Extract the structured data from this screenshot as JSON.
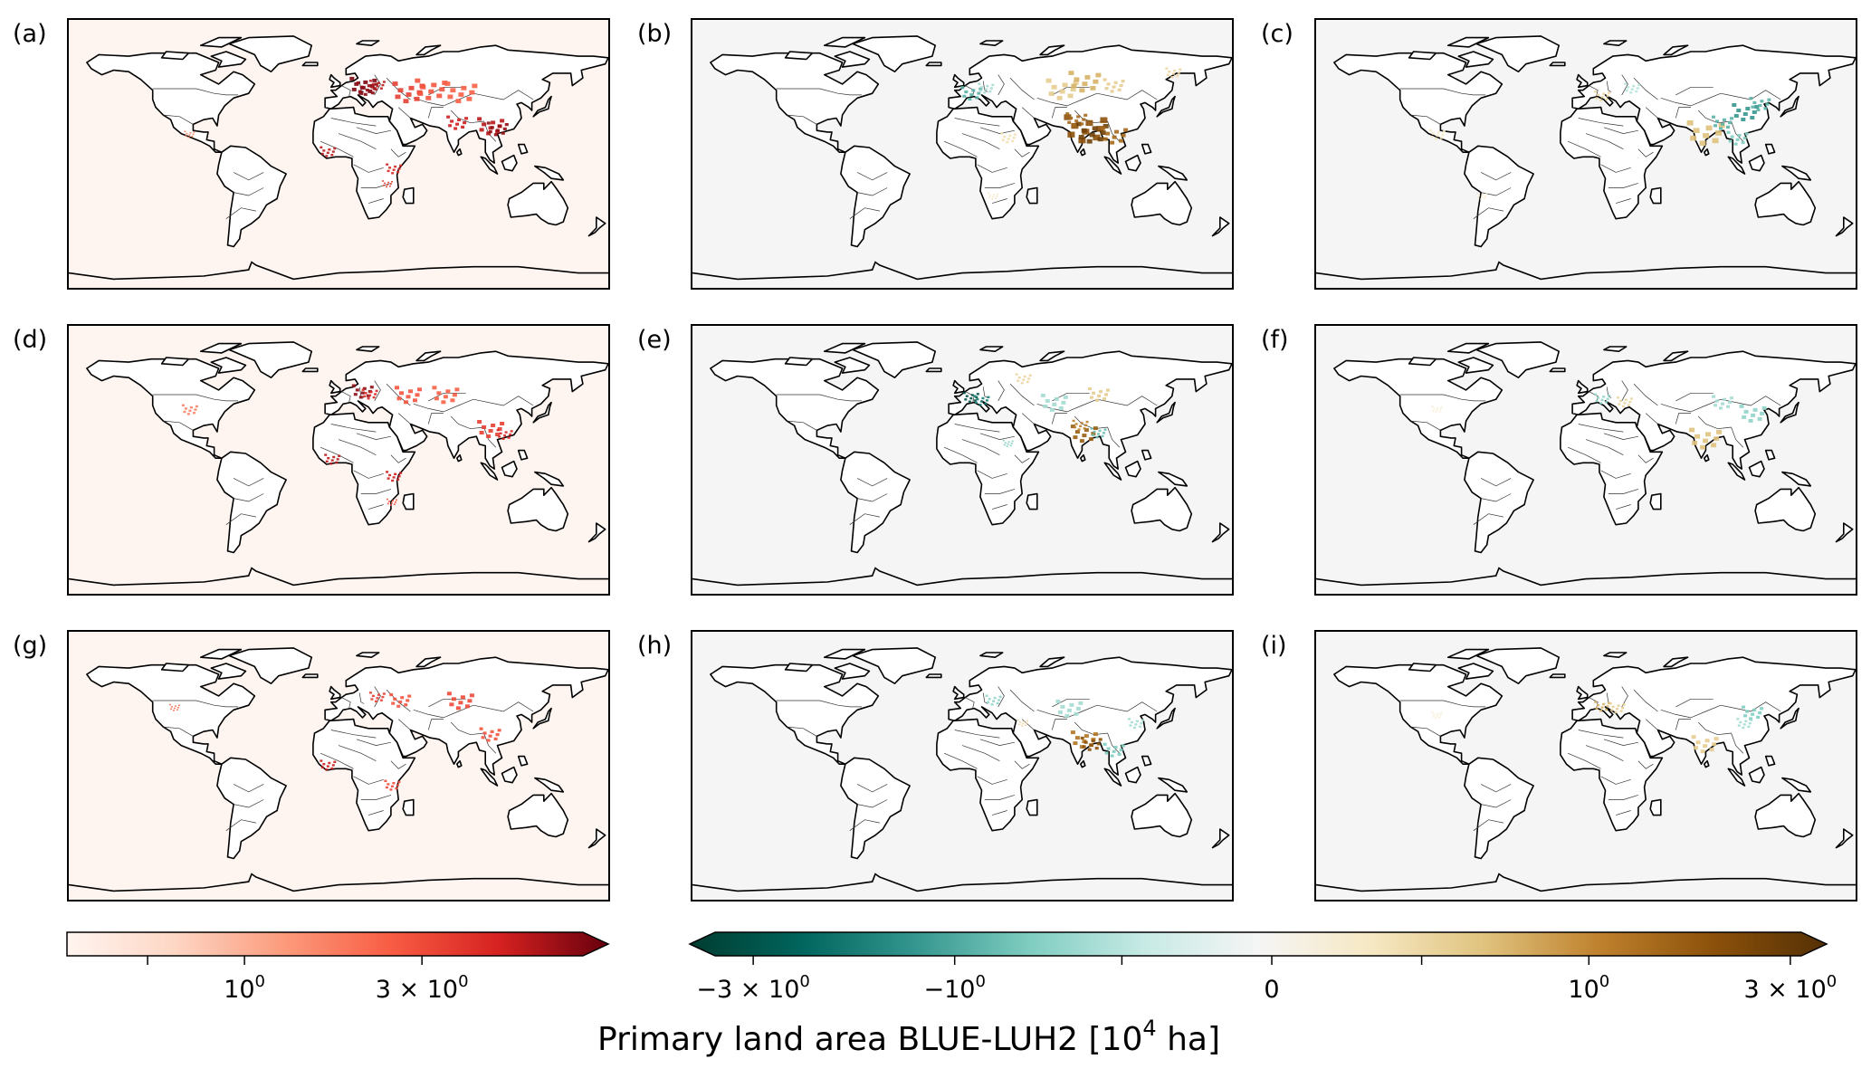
{
  "chart_data": {
    "type": "heatmap",
    "layout": "3x3 grid of global maps",
    "panels": [
      {
        "label": "(a)",
        "colormap": "Reds",
        "hotspots": [
          "Central/Eastern Europe",
          "Southern Russia/Kazakhstan",
          "Northern India",
          "Southern China",
          "West Africa",
          "East Africa"
        ]
      },
      {
        "label": "(b)",
        "colormap": "BrBG_r",
        "hotspots": [
          "Northern India (positive)",
          "Southeast Asia (positive)",
          "Central Asia (positive)",
          "Western Europe (negative)"
        ]
      },
      {
        "label": "(c)",
        "colormap": "BrBG_r",
        "hotspots": [
          "India (positive)",
          "Northern China (negative)",
          "Southeast Asia (negative)",
          "Europe (mixed)"
        ]
      },
      {
        "label": "(d)",
        "colormap": "Reds",
        "hotspots": [
          "Central Europe",
          "Southern Russia",
          "Southern China",
          "West Africa",
          "East Africa",
          "North America"
        ]
      },
      {
        "label": "(e)",
        "colormap": "BrBG_r",
        "hotspots": [
          "Central Europe (negative)",
          "India (positive)",
          "Central Asia (mixed)"
        ]
      },
      {
        "label": "(f)",
        "colormap": "BrBG_r",
        "hotspots": [
          "India (positive)",
          "Northern China (negative)",
          "Europe (mixed)"
        ]
      },
      {
        "label": "(g)",
        "colormap": "Reds",
        "hotspots": [
          "Eastern Europe",
          "Central Asia",
          "Southern China",
          "West Africa",
          "East Africa"
        ]
      },
      {
        "label": "(h)",
        "colormap": "BrBG_r",
        "hotspots": [
          "India (positive)",
          "Central Asia (negative)",
          "Southeast Asia (negative)"
        ]
      },
      {
        "label": "(i)",
        "colormap": "BrBG_r",
        "hotspots": [
          "India (positive)",
          "Northern China (negative)",
          "Europe (positive)"
        ]
      }
    ],
    "colorbars": [
      {
        "colormap": "Reds",
        "extend": "max",
        "scale": "symlog",
        "ticks": [
          {
            "value": 1,
            "label_base": "10",
            "label_exp": "0"
          },
          {
            "value": 3,
            "label_base": "3 × 10",
            "label_exp": "0"
          }
        ]
      },
      {
        "colormap": "BrBG_r",
        "extend": "both",
        "scale": "symlog",
        "range": [
          -3,
          3
        ],
        "ticks": [
          {
            "value": -3,
            "label_base": "−3 × 10",
            "label_exp": "0"
          },
          {
            "value": -1,
            "label_base": "−10",
            "label_exp": "0"
          },
          {
            "value": 0,
            "label_base": "0",
            "label_exp": ""
          },
          {
            "value": 1,
            "label_base": "10",
            "label_exp": "0"
          },
          {
            "value": 3,
            "label_base": "3 × 10",
            "label_exp": "0"
          }
        ]
      }
    ],
    "colorbar_label": {
      "pre": "Primary land area BLUE-LUH2 [10",
      "sup": "4",
      "post": " ha]"
    }
  },
  "colors": {
    "reds_background": "#fff5f0",
    "div_background": "#f5f5f5",
    "land_fill": "#ffffff",
    "coast_stroke": "#000000",
    "reds_ramp": [
      "#fff5f0",
      "#fdd6c4",
      "#fc9b7c",
      "#f85c43",
      "#d52120",
      "#67000d"
    ],
    "div_ramp": [
      "#003c30",
      "#01665e",
      "#35978f",
      "#80cdc1",
      "#c7eae5",
      "#f5f5f5",
      "#f6e8c3",
      "#dfc27d",
      "#bf812d",
      "#8c510a",
      "#543005"
    ]
  }
}
